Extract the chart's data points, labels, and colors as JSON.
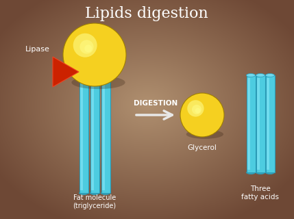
{
  "title": "Lipids digestion",
  "title_color": "#ffffff",
  "title_fontsize": 16,
  "tube_color": "#4dcce0",
  "tube_color_dark": "#2a9ab5",
  "tube_color_light": "#88e8f8",
  "ball_color": "#f5d020",
  "ball_highlight": "#ffff80",
  "ball_shadow": "#c8a000",
  "red_color": "#cc2200",
  "red_edge": "#ee4422",
  "arrow_color": "#e8e8e8",
  "label_color": "#ffffff",
  "digestion_label": "DIGESTION",
  "lipase_label": "Lipase",
  "fat_label": "Fat molecule\n(triglyceride)",
  "glycerol_label": "Glycerol",
  "fatty_acids_label": "Three\nfatty acids",
  "bg_dark": "#6e4a38",
  "bg_mid": "#a07860",
  "bg_light": "#b89078"
}
